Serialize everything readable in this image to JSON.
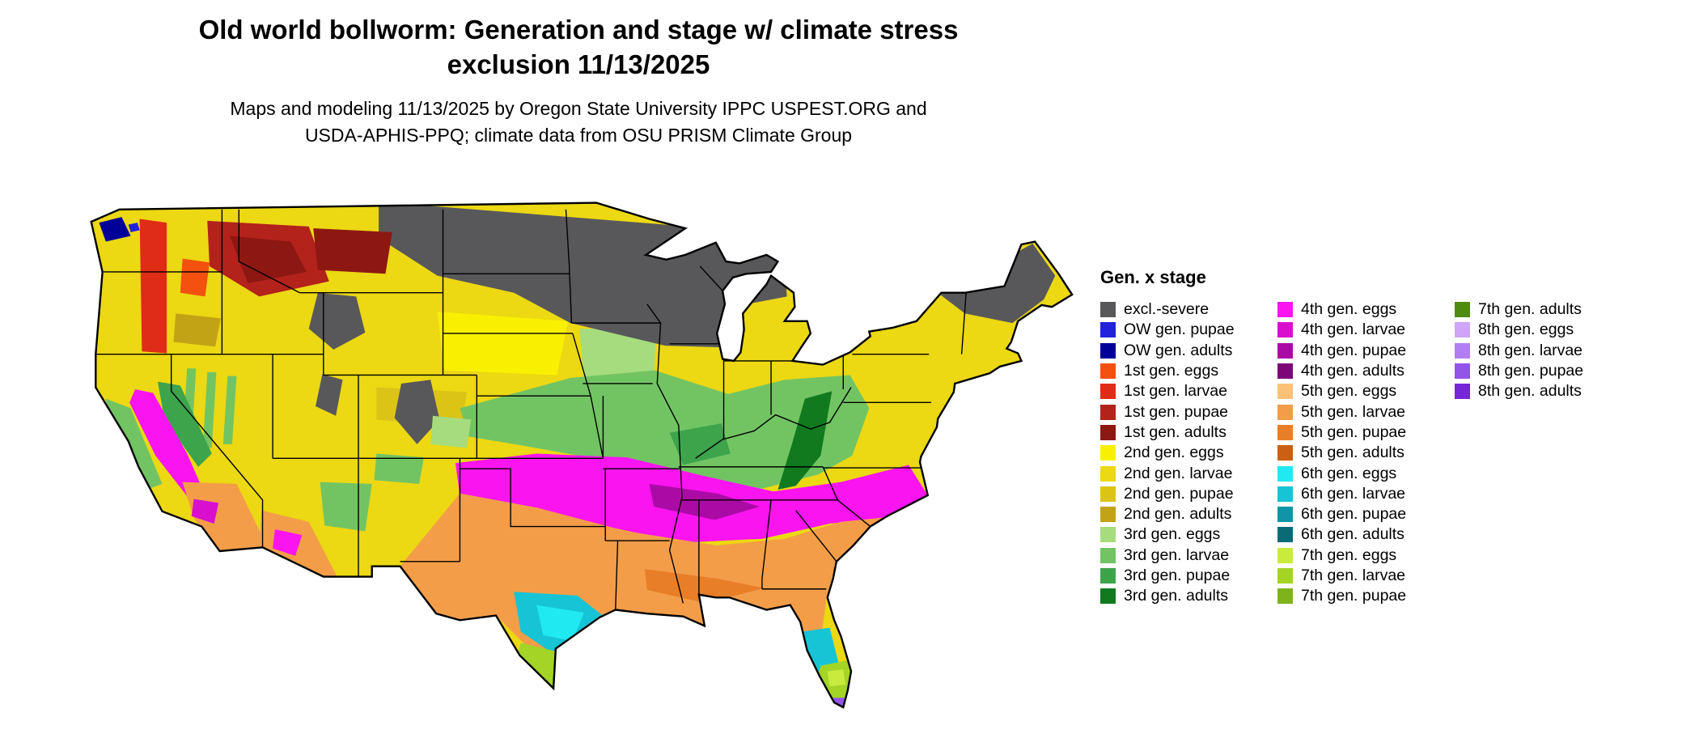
{
  "header": {
    "title_line1": "Old world bollworm: Generation and stage w/ climate stress",
    "title_line2": "exclusion 11/13/2025",
    "subtitle_line1": "Maps and modeling 11/13/2025 by Oregon State University IPPC USPEST.ORG and",
    "subtitle_line2": "USDA-APHIS-PPQ; climate data from OSU PRISM Climate Group"
  },
  "map": {
    "name": "Continental United States choropleth of old world bollworm generation and stage",
    "background_color": "#ffffff",
    "border_color": "#000000"
  },
  "legend": {
    "title": "Gen. x stage",
    "columns": [
      [
        {
          "key": "excl-severe",
          "label": "excl.-severe",
          "color": "#58585a"
        },
        {
          "key": "ow-pupae",
          "label": "OW gen. pupae",
          "color": "#2222dd"
        },
        {
          "key": "ow-adults",
          "label": "OW gen. adults",
          "color": "#000099"
        },
        {
          "key": "g1-eggs",
          "label": "1st gen. eggs",
          "color": "#f4500f"
        },
        {
          "key": "g1-larvae",
          "label": "1st gen. larvae",
          "color": "#de2c16"
        },
        {
          "key": "g1-pupae",
          "label": "1st gen. pupae",
          "color": "#b3221b"
        },
        {
          "key": "g1-adults",
          "label": "1st gen. adults",
          "color": "#8d1812"
        },
        {
          "key": "g2-eggs",
          "label": "2nd gen. eggs",
          "color": "#f9f000"
        },
        {
          "key": "g2-larvae",
          "label": "2nd gen. larvae",
          "color": "#ecd813"
        },
        {
          "key": "g2-pupae",
          "label": "2nd gen. pupae",
          "color": "#dcc417"
        },
        {
          "key": "g2-adults",
          "label": "2nd gen. adults",
          "color": "#c3a316"
        },
        {
          "key": "g3-eggs",
          "label": "3rd gen. eggs",
          "color": "#a6dc7d"
        },
        {
          "key": "g3-larvae",
          "label": "3rd gen. larvae",
          "color": "#72c463"
        },
        {
          "key": "g3-pupae",
          "label": "3rd gen. pupae",
          "color": "#3da44c"
        },
        {
          "key": "g3-adults",
          "label": "3rd gen. adults",
          "color": "#117a1f"
        }
      ],
      [
        {
          "key": "g4-eggs",
          "label": "4th gen. eggs",
          "color": "#fa14f0"
        },
        {
          "key": "g4-larvae",
          "label": "4th gen. larvae",
          "color": "#d810ce"
        },
        {
          "key": "g4-pupae",
          "label": "4th gen. pupae",
          "color": "#ab0ba5"
        },
        {
          "key": "g4-adults",
          "label": "4th gen. adults",
          "color": "#7c0678"
        },
        {
          "key": "g5-eggs",
          "label": "5th gen. eggs",
          "color": "#fcc179"
        },
        {
          "key": "g5-larvae",
          "label": "5th gen. larvae",
          "color": "#f39d49"
        },
        {
          "key": "g5-pupae",
          "label": "5th gen. pupae",
          "color": "#e87e27"
        },
        {
          "key": "g5-adults",
          "label": "5th gen. adults",
          "color": "#cb5f13"
        },
        {
          "key": "g6-eggs",
          "label": "6th gen. eggs",
          "color": "#20e9f2"
        },
        {
          "key": "g6-larvae",
          "label": "6th gen. larvae",
          "color": "#16c4d5"
        },
        {
          "key": "g6-pupae",
          "label": "6th gen. pupae",
          "color": "#0f95a5"
        },
        {
          "key": "g6-adults",
          "label": "6th gen. adults",
          "color": "#0a6b78"
        },
        {
          "key": "g7-eggs",
          "label": "7th gen. eggs",
          "color": "#c9eb3e"
        },
        {
          "key": "g7-larvae",
          "label": "7th gen. larvae",
          "color": "#a3d426"
        },
        {
          "key": "g7-pupae",
          "label": "7th gen. pupae",
          "color": "#7db41b"
        }
      ],
      [
        {
          "key": "g7-adults",
          "label": "7th gen. adults",
          "color": "#4f8a11"
        },
        {
          "key": "g8-eggs",
          "label": "8th gen. eggs",
          "color": "#d0a5f8"
        },
        {
          "key": "g8-larvae",
          "label": "8th gen. larvae",
          "color": "#b27ef1"
        },
        {
          "key": "g8-pupae",
          "label": "8th gen. pupae",
          "color": "#9355e9"
        },
        {
          "key": "g8-adults",
          "label": "8th gen. adults",
          "color": "#7627d8"
        }
      ]
    ]
  }
}
